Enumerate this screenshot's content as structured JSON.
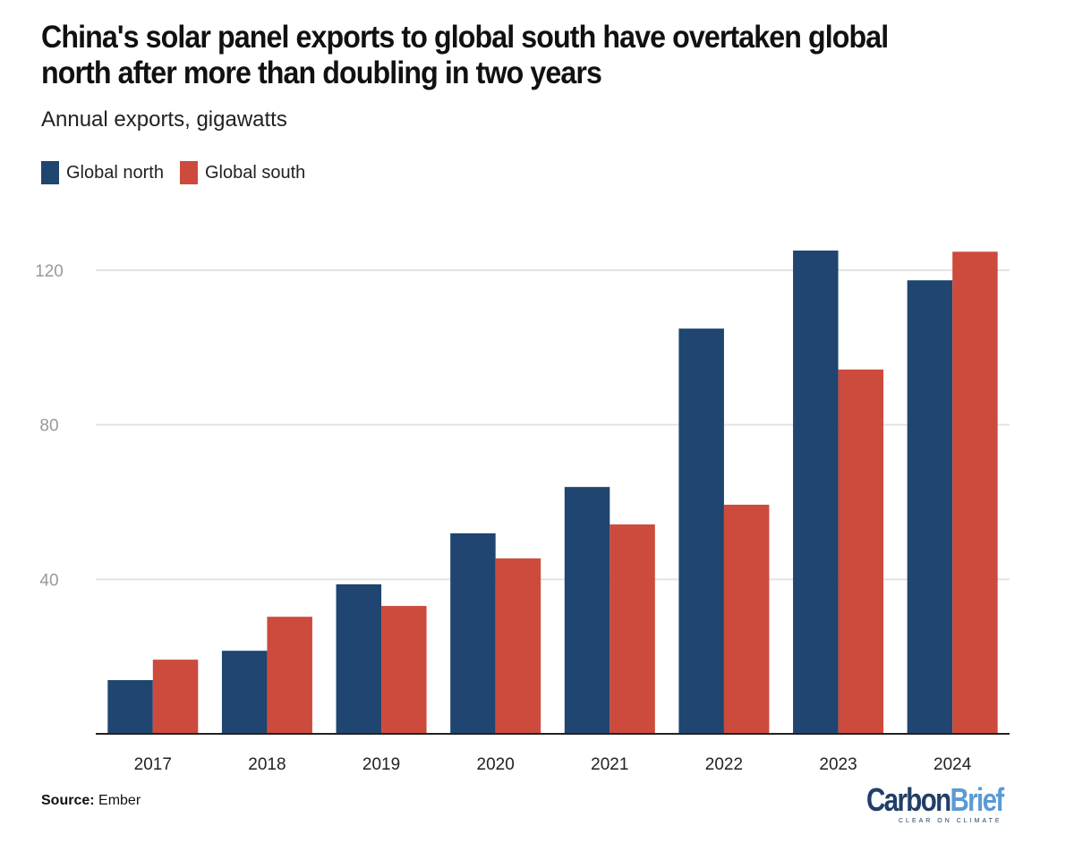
{
  "chart_data": {
    "type": "bar",
    "title": "China's solar panel exports to global south have overtaken global north after more than doubling in two years",
    "subtitle": "Annual exports, gigawatts",
    "categories": [
      "2017",
      "2018",
      "2019",
      "2020",
      "2021",
      "2022",
      "2023",
      "2024"
    ],
    "series": [
      {
        "name": "Global north",
        "color": "#1f4570",
        "values": [
          13.9,
          21.5,
          38.7,
          51.9,
          63.9,
          104.9,
          125.1,
          117.4
        ]
      },
      {
        "name": "Global south",
        "color": "#cc4b3c",
        "values": [
          19.2,
          30.3,
          33.1,
          45.4,
          54.2,
          59.3,
          94.3,
          124.8
        ]
      }
    ],
    "yticks": [
      40,
      80,
      120
    ],
    "ylim": [
      0,
      128
    ],
    "grid": true,
    "legend_placement": "top-left"
  },
  "source_label": "Source:",
  "source_value": "Ember",
  "logo": {
    "carbon": "Carbon",
    "brief": "Brief",
    "tagline": "CLEAR ON CLIMATE"
  }
}
